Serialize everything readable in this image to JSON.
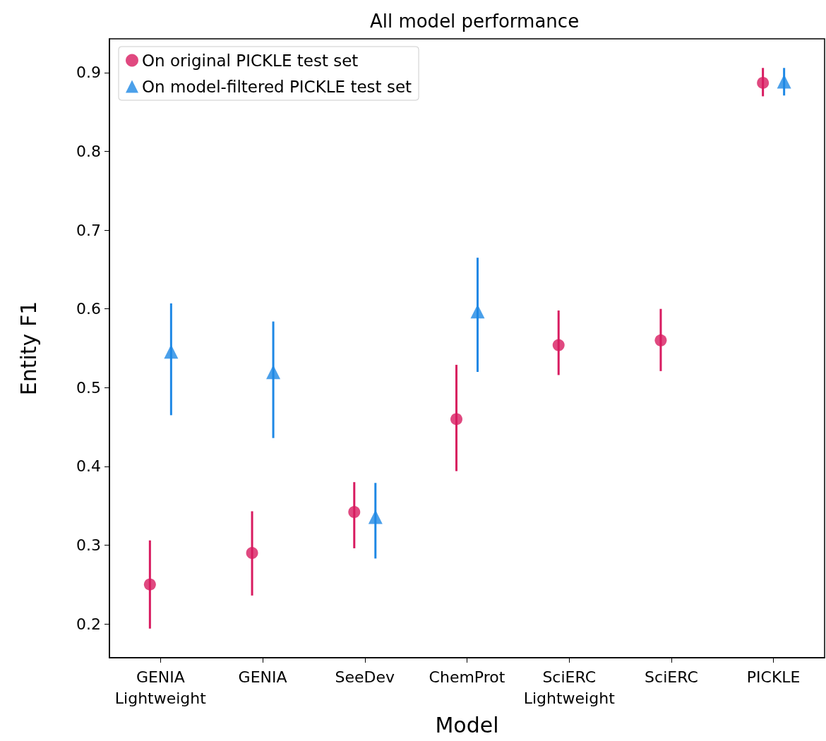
{
  "chart_data": {
    "type": "scatter",
    "title": "All model performance",
    "xlabel": "Model",
    "ylabel": "Entity F1",
    "categories": [
      "GENIA\nLightweight",
      "GENIA",
      "SeeDev",
      "ChemProt",
      "SciERC\nLightweight",
      "SciERC",
      "PICKLE"
    ],
    "series": [
      {
        "name": "On original PICKLE test set",
        "color": "#d81b60",
        "marker": "circle",
        "values": [
          0.25,
          0.29,
          0.342,
          0.46,
          0.554,
          0.56,
          0.887
        ],
        "errors": [
          [
            0.194,
            0.306
          ],
          [
            0.236,
            0.343
          ],
          [
            0.296,
            0.38
          ],
          [
            0.394,
            0.529
          ],
          [
            0.516,
            0.598
          ],
          [
            0.521,
            0.6
          ],
          [
            0.87,
            0.906
          ]
        ]
      },
      {
        "name": "On model-filtered PICKLE test set",
        "color": "#1e88e5",
        "marker": "triangle",
        "values": [
          0.544,
          0.518,
          0.334,
          0.595,
          null,
          null,
          0.887
        ],
        "errors": [
          [
            0.465,
            0.607
          ],
          [
            0.436,
            0.584
          ],
          [
            0.283,
            0.379
          ],
          [
            0.52,
            0.665
          ],
          null,
          null,
          [
            0.871,
            0.906
          ]
        ]
      }
    ],
    "ylim": [
      0.157,
      0.943
    ],
    "yticks": [
      0.2,
      0.3,
      0.4,
      0.5,
      0.6,
      0.7,
      0.8,
      0.9
    ],
    "grid": false,
    "legend": "top left"
  }
}
